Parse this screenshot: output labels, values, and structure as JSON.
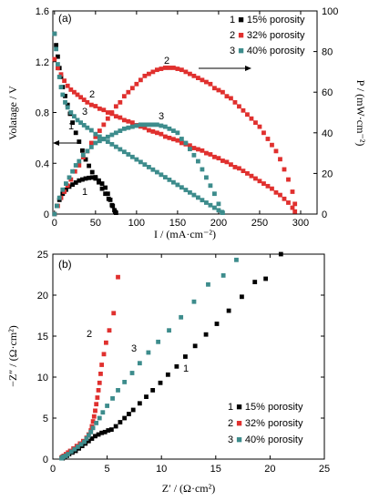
{
  "series_colors": {
    "p15": "#000000",
    "p32": "#e0302e",
    "p40": "#3d8c8c"
  },
  "chart_data": [
    {
      "type": "scatter",
      "panel_label": "(a)",
      "xlabel": "I / (mA·cm⁻²)",
      "ylabel_left": "Volatage / V",
      "ylabel_right": "P / (mW·cm⁻²)",
      "xlim": [
        -2,
        320
      ],
      "ylim_left": [
        0,
        1.6
      ],
      "ylim_right": [
        0,
        100
      ],
      "xticks": [
        "0",
        "50",
        "100",
        "150",
        "200",
        "250",
        "300"
      ],
      "yticks_left": [
        "0",
        "0.4",
        "0.8",
        "1.2",
        "1.6"
      ],
      "yticks_right": [
        "0",
        "20",
        "40",
        "60",
        "80",
        "100"
      ],
      "legend": [
        "1 ■ 15% porosity",
        "2 ■ 32% porosity",
        "3 ■ 40% porosity"
      ],
      "legend_position": "top-right",
      "curve_labels": [
        "1",
        "2",
        "3",
        "1",
        "2",
        "3"
      ],
      "series": [
        {
          "name": "15% porosity",
          "curve": "polarization",
          "axis": "left",
          "x": [
            0,
            2,
            4,
            6,
            8,
            10,
            13,
            16,
            19,
            22,
            26,
            30,
            34,
            38,
            42,
            46,
            50,
            54,
            58,
            62,
            66,
            70,
            73,
            75
          ],
          "y": [
            1.42,
            1.33,
            1.24,
            1.15,
            1.08,
            1.0,
            0.93,
            0.86,
            0.79,
            0.72,
            0.64,
            0.57,
            0.5,
            0.43,
            0.38,
            0.33,
            0.29,
            0.25,
            0.2,
            0.16,
            0.12,
            0.07,
            0.03,
            0.01
          ]
        },
        {
          "name": "15% porosity",
          "curve": "power",
          "axis": "right",
          "x": [
            0,
            3,
            6,
            10,
            14,
            18,
            22,
            26,
            30,
            34,
            38,
            42,
            46,
            50,
            54,
            58,
            62,
            65,
            68,
            71,
            74
          ],
          "y": [
            0,
            4,
            7,
            10,
            12,
            13.5,
            14.5,
            15.5,
            16.5,
            17,
            17.5,
            17.8,
            18,
            17.5,
            16.5,
            15,
            13,
            10,
            7,
            4,
            1
          ]
        },
        {
          "name": "32% porosity",
          "curve": "polarization",
          "axis": "left",
          "x": [
            0,
            4,
            8,
            12,
            16,
            20,
            24,
            28,
            32,
            36,
            40,
            45,
            50,
            55,
            60,
            65,
            70,
            75,
            80,
            85,
            90,
            95,
            100,
            105,
            110,
            115,
            120,
            125,
            130,
            135,
            140,
            145,
            150,
            155,
            160,
            165,
            170,
            175,
            180,
            185,
            190,
            195,
            200,
            205,
            210,
            215,
            220,
            225,
            230,
            235,
            240,
            245,
            250,
            255,
            260,
            265,
            270,
            275,
            280,
            285,
            290,
            293
          ],
          "y": [
            1.22,
            1.15,
            1.1,
            1.05,
            1.01,
            0.98,
            0.96,
            0.94,
            0.92,
            0.9,
            0.88,
            0.86,
            0.85,
            0.83,
            0.82,
            0.8,
            0.79,
            0.77,
            0.76,
            0.74,
            0.73,
            0.72,
            0.7,
            0.69,
            0.68,
            0.66,
            0.65,
            0.64,
            0.63,
            0.61,
            0.6,
            0.59,
            0.58,
            0.56,
            0.55,
            0.54,
            0.52,
            0.51,
            0.5,
            0.48,
            0.47,
            0.45,
            0.44,
            0.42,
            0.41,
            0.39,
            0.37,
            0.36,
            0.34,
            0.32,
            0.3,
            0.28,
            0.26,
            0.24,
            0.22,
            0.2,
            0.17,
            0.15,
            0.12,
            0.09,
            0.05,
            0.02
          ]
        },
        {
          "name": "32% porosity",
          "curve": "power",
          "axis": "right",
          "x": [
            0,
            4,
            8,
            12,
            16,
            20,
            25,
            30,
            35,
            40,
            45,
            50,
            55,
            60,
            65,
            70,
            75,
            80,
            85,
            90,
            95,
            100,
            105,
            110,
            115,
            120,
            125,
            130,
            135,
            140,
            145,
            150,
            155,
            160,
            165,
            170,
            175,
            180,
            185,
            190,
            195,
            200,
            205,
            210,
            215,
            220,
            225,
            230,
            235,
            240,
            245,
            250,
            255,
            260,
            265,
            270,
            275,
            280,
            285,
            290,
            293
          ],
          "y": [
            0,
            4,
            8,
            11,
            14,
            17,
            21,
            24,
            28,
            31,
            35,
            38,
            41,
            44,
            47,
            50,
            53,
            55,
            58,
            60,
            62,
            64,
            66,
            68,
            69,
            70,
            71,
            71.5,
            72,
            72,
            72,
            71.5,
            71,
            70,
            69,
            68,
            67,
            66,
            65,
            64,
            62,
            61,
            60,
            58,
            57,
            55,
            53,
            51,
            49,
            47,
            45,
            43,
            40,
            37,
            34,
            31,
            27,
            22,
            17,
            11,
            5
          ]
        },
        {
          "name": "40% porosity",
          "curve": "polarization",
          "axis": "left",
          "x": [
            0,
            2,
            4,
            6,
            8,
            10,
            13,
            16,
            20,
            24,
            28,
            32,
            36,
            40,
            45,
            50,
            55,
            60,
            65,
            70,
            75,
            80,
            85,
            90,
            95,
            100,
            105,
            110,
            115,
            120,
            125,
            130,
            135,
            140,
            145,
            150,
            155,
            160,
            165,
            170,
            175,
            180,
            185,
            190,
            195,
            200,
            205
          ],
          "y": [
            1.42,
            1.3,
            1.18,
            1.08,
            1.0,
            0.94,
            0.88,
            0.84,
            0.8,
            0.77,
            0.74,
            0.72,
            0.7,
            0.68,
            0.66,
            0.63,
            0.61,
            0.59,
            0.57,
            0.55,
            0.53,
            0.51,
            0.49,
            0.47,
            0.45,
            0.43,
            0.41,
            0.39,
            0.37,
            0.35,
            0.33,
            0.31,
            0.29,
            0.27,
            0.25,
            0.23,
            0.21,
            0.19,
            0.17,
            0.15,
            0.13,
            0.11,
            0.09,
            0.07,
            0.05,
            0.03,
            0.01
          ]
        },
        {
          "name": "40% porosity",
          "curve": "power",
          "axis": "right",
          "x": [
            0,
            3,
            6,
            10,
            14,
            18,
            22,
            26,
            30,
            35,
            40,
            45,
            50,
            55,
            60,
            65,
            70,
            75,
            80,
            85,
            90,
            95,
            100,
            105,
            110,
            115,
            120,
            125,
            130,
            135,
            140,
            145,
            150,
            155,
            160,
            165,
            170,
            175,
            180,
            185,
            190,
            195,
            200,
            204
          ],
          "y": [
            0,
            4,
            8,
            12,
            15,
            18,
            21,
            24,
            26,
            29,
            31,
            33,
            35,
            36,
            37,
            38,
            39,
            40,
            41,
            42,
            42.5,
            43,
            43.5,
            44,
            44,
            44,
            44,
            44,
            43.5,
            43,
            42,
            41,
            40,
            37,
            35,
            32,
            29,
            26,
            22,
            18,
            14,
            10,
            5,
            1
          ]
        }
      ]
    },
    {
      "type": "scatter",
      "panel_label": "(b)",
      "xlabel": "Z′ / (Ω·cm²)",
      "ylabel": "−Z″ / (Ω·cm²)",
      "xlim": [
        0,
        25
      ],
      "ylim": [
        0,
        25
      ],
      "xticks": [
        "0",
        "5",
        "10",
        "15",
        "20",
        "25"
      ],
      "yticks": [
        "0",
        "5",
        "10",
        "15",
        "20",
        "25"
      ],
      "legend": [
        "1 ■ 15% porosity",
        "2 ■ 32% porosity",
        "3 ■ 40% porosity"
      ],
      "legend_position": "bottom-right",
      "curve_labels": [
        "1",
        "2",
        "3"
      ],
      "series": [
        {
          "name": "15% porosity",
          "x": [
            0.9,
            1.0,
            1.1,
            1.3,
            1.5,
            1.8,
            2.1,
            2.4,
            2.7,
            3.0,
            3.3,
            3.6,
            3.9,
            4.2,
            4.5,
            4.8,
            5.1,
            5.4,
            5.8,
            6.2,
            6.6,
            7.0,
            7.4,
            8.0,
            8.6,
            9.2,
            9.9,
            10.6,
            11.4,
            12.2,
            13.1,
            14.1,
            15.1,
            16.2,
            17.4,
            18.6,
            19.6,
            21.0
          ],
          "y": [
            0.1,
            0.2,
            0.3,
            0.4,
            0.6,
            0.8,
            1.0,
            1.3,
            1.6,
            1.9,
            2.2,
            2.5,
            2.8,
            3.0,
            3.2,
            3.3,
            3.5,
            3.6,
            4.0,
            4.5,
            5.0,
            5.5,
            6.0,
            6.8,
            7.6,
            8.4,
            9.3,
            10.3,
            11.3,
            12.5,
            13.8,
            15.2,
            16.5,
            18.1,
            19.8,
            21.6,
            22.0,
            25.0
          ]
        },
        {
          "name": "32% porosity",
          "x": [
            0.8,
            0.9,
            1.0,
            1.2,
            1.4,
            1.6,
            1.9,
            2.2,
            2.5,
            2.8,
            3.1,
            3.3,
            3.5,
            3.6,
            3.7,
            3.8,
            3.9,
            4.0,
            4.1,
            4.2,
            4.3,
            4.4,
            4.5,
            4.7,
            4.9,
            5.2,
            5.6,
            6.0
          ],
          "y": [
            0.2,
            0.3,
            0.4,
            0.6,
            0.8,
            1.0,
            1.3,
            1.6,
            1.9,
            2.2,
            2.6,
            3.0,
            3.5,
            4.0,
            4.6,
            5.2,
            5.9,
            6.7,
            7.5,
            8.4,
            9.3,
            10.4,
            11.5,
            12.8,
            14.2,
            15.7,
            17.8,
            22.2
          ]
        },
        {
          "name": "40% porosity",
          "x": [
            0.8,
            0.9,
            1.0,
            1.2,
            1.4,
            1.7,
            2.0,
            2.3,
            2.6,
            2.9,
            3.1,
            3.3,
            3.5,
            3.7,
            4.0,
            4.3,
            4.6,
            5.0,
            5.5,
            6.0,
            6.6,
            7.3,
            8.0,
            8.8,
            9.7,
            10.7,
            11.8,
            13.0,
            14.3,
            15.7,
            16.9
          ],
          "y": [
            0.1,
            0.2,
            0.3,
            0.4,
            0.6,
            0.9,
            1.2,
            1.5,
            1.8,
            2.1,
            2.5,
            2.9,
            3.3,
            3.8,
            4.4,
            5.0,
            5.7,
            6.5,
            7.4,
            8.4,
            9.4,
            10.5,
            11.7,
            13.0,
            14.3,
            15.7,
            17.3,
            19.2,
            21.3,
            22.4,
            24.3
          ]
        }
      ]
    }
  ]
}
